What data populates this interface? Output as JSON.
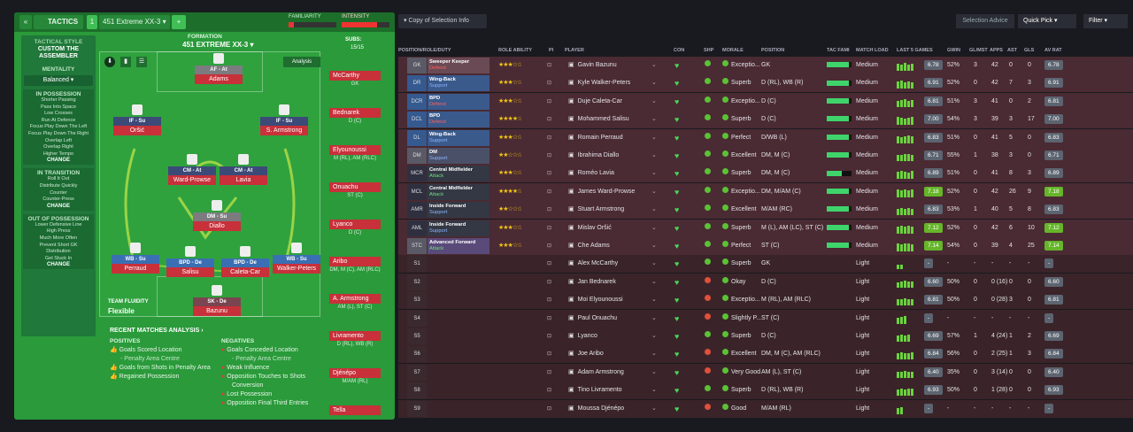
{
  "tactics": {
    "tab_label": "TACTICS",
    "slot": "1",
    "tactic_name": "451 Extreme XX-3",
    "add": "+",
    "familiarity_label": "FAMILIARITY",
    "intensity_label": "INTENSITY",
    "formation_label": "FORMATION",
    "formation_name": "451 EXTREME XX-3",
    "subs_label": "SUBS:",
    "subs_count": "15/15",
    "analysis": "Analysis",
    "style_label": "TACTICAL STYLE",
    "style_name": "CUSTOM THE ASSEMBLER",
    "mentality_label": "MENTALITY",
    "mentality": "Balanced",
    "in_possession": {
      "title": "IN POSSESSION",
      "items": [
        "Shorter Passing",
        "Pass Into Space",
        "Low Crosses",
        "Run At Defence",
        "Focus Play Down The Left",
        "Focus Play Down The Right",
        "Overlap Left",
        "Overlap Right",
        "Higher Tempo"
      ],
      "change": "CHANGE"
    },
    "in_transition": {
      "title": "IN TRANSITION",
      "items": [
        "Roll It Out",
        "Distribute Quickly",
        "Counter",
        "Counter-Press"
      ],
      "change": "CHANGE"
    },
    "out_of_possession": {
      "title": "OUT OF POSSESSION",
      "items": [
        "Lower Defensive Line",
        "High Press",
        "Much More Often",
        "Prevent Short GK",
        "Distribution",
        "Get Stuck In"
      ],
      "change": "CHANGE"
    },
    "team_fluidity_label": "TEAM FLUIDITY",
    "team_fluidity": "Flexible",
    "pitch": [
      {
        "role": "AF - At",
        "name": "Adams"
      },
      {
        "role": "IF - Su",
        "name": "Oršić"
      },
      {
        "role": "IF - Su",
        "name": "S. Armstrong"
      },
      {
        "role": "CM - At",
        "name": "Ward-Prowse"
      },
      {
        "role": "CM - At",
        "name": "Lavia"
      },
      {
        "role": "DM - Su",
        "name": "Diallo"
      },
      {
        "role": "WB - Su",
        "name": "Perraud"
      },
      {
        "role": "BPD - De",
        "name": "Salisu"
      },
      {
        "role": "BPD - De",
        "name": "Caleta-Car"
      },
      {
        "role": "WB - Su",
        "name": "Walker-Peters"
      },
      {
        "role": "SK - De",
        "name": "Bazunu"
      }
    ],
    "subs": [
      {
        "name": "McCarthy",
        "pos": "GK"
      },
      {
        "name": "Bednarek",
        "pos": "D (C)"
      },
      {
        "name": "Elyounoussi",
        "pos": "M (RL), AM (RLC)"
      },
      {
        "name": "Onuachu",
        "pos": "ST (C)"
      },
      {
        "name": "Lyanco",
        "pos": "D (C)"
      },
      {
        "name": "Aribo",
        "pos": "DM, M (C), AM (RLC)"
      },
      {
        "name": "A. Armstrong",
        "pos": "AM (L), ST (C)"
      },
      {
        "name": "Livramento",
        "pos": "D (RL), WB (R)"
      },
      {
        "name": "Djénépo",
        "pos": "M/AM (RL)"
      },
      {
        "name": "Tella",
        "pos": ""
      }
    ],
    "rmr_title": "RECENT MATCHES ANALYSIS",
    "positives_label": "POSITIVES",
    "negatives_label": "NEGATIVES",
    "positives": [
      "Goals Scored Location",
      "- Penalty Area Centre",
      "Goals from Shots in Penalty Area",
      "Regained Possession"
    ],
    "negatives": [
      "Goals Conceded Location",
      "- Penalty Area Centre",
      "Weak Influence",
      "Opposition Touches to Shots",
      "Conversion",
      "Lost Possession",
      "Opposition Final Third Entries"
    ]
  },
  "squad": {
    "copy_button": "Copy of Selection Info",
    "selection_advice": "Selection Advice",
    "quick_pick": "Quick Pick",
    "filter": "Filter",
    "headers": [
      "POSITION/ROLE/DUTY",
      "ROLE ABILITY",
      "PI",
      "PLAYER",
      "CON",
      "SHP",
      "MORALE",
      "POSITION",
      "TAC FAMI",
      "MATCH LOAD",
      "LAST 5 GAMES",
      "GWIN",
      "GL/MST",
      "APPS",
      "AST",
      "GLS",
      "AV RAT"
    ],
    "rows": [
      {
        "pos": "GK",
        "role": "Sweeper Keeper",
        "duty": "Defend",
        "stars": 3,
        "player": "Gavin Bazunu",
        "morale": "Exceptio...",
        "position": "GK",
        "fam": 0.9,
        "load": "Medium",
        "bars": [
          5,
          4,
          6,
          4,
          5
        ],
        "gwin": "52%",
        "glmst": "3",
        "apps": "42",
        "ast": "0",
        "gls": "0",
        "avrat": "6.78",
        "good": false
      },
      {
        "pos": "DR",
        "role": "Wing-Back",
        "duty": "Support",
        "stars": 3,
        "player": "Kyle Walker-Peters",
        "morale": "Superb",
        "position": "D (RL), WB (R)",
        "fam": 0.9,
        "load": "Medium",
        "bars": [
          5,
          6,
          4,
          5,
          4
        ],
        "gwin": "52%",
        "glmst": "0",
        "apps": "42",
        "ast": "7",
        "gls": "3",
        "avrat": "6.91",
        "good": false
      },
      {
        "pos": "DCR",
        "role": "BPD",
        "duty": "Defend",
        "stars": 3,
        "player": "Duje Caleta-Car",
        "morale": "Exceptio...",
        "position": "D (C)",
        "fam": 0.9,
        "load": "Medium",
        "bars": [
          4,
          5,
          6,
          4,
          5
        ],
        "gwin": "51%",
        "glmst": "3",
        "apps": "41",
        "ast": "0",
        "gls": "2",
        "avrat": "6.81",
        "good": false
      },
      {
        "pos": "DCL",
        "role": "BPD",
        "duty": "Defend",
        "stars": 4,
        "player": "Mohammed Salisu",
        "morale": "Superb",
        "position": "D (C)",
        "fam": 0.9,
        "load": "Medium",
        "bars": [
          6,
          5,
          4,
          5,
          6
        ],
        "gwin": "54%",
        "glmst": "3",
        "apps": "39",
        "ast": "3",
        "gls": "17",
        "avrat": "7.00",
        "good": false
      },
      {
        "pos": "DL",
        "role": "Wing-Back",
        "duty": "Support",
        "stars": 3,
        "player": "Romain Perraud",
        "morale": "Perfect",
        "position": "D/WB (L)",
        "fam": 0.9,
        "load": "Medium",
        "bars": [
          5,
          4,
          5,
          6,
          5
        ],
        "gwin": "51%",
        "glmst": "0",
        "apps": "41",
        "ast": "5",
        "gls": "0",
        "avrat": "6.83",
        "good": false
      },
      {
        "pos": "DM",
        "role": "DM",
        "duty": "Support",
        "stars": 2,
        "player": "Ibrahima Diallo",
        "morale": "Excellent",
        "position": "DM, M (C)",
        "fam": 0.9,
        "load": "Medium",
        "bars": [
          4,
          4,
          5,
          5,
          4
        ],
        "gwin": "55%",
        "glmst": "1",
        "apps": "38",
        "ast": "3",
        "gls": "0",
        "avrat": "6.71",
        "good": false
      },
      {
        "pos": "MCR",
        "role": "Central Midfielder",
        "duty": "Attack",
        "stars": 3,
        "player": "Roméo Lavia",
        "morale": "Superb",
        "position": "DM, M (C)",
        "fam": 0.6,
        "load": "Medium",
        "bars": [
          5,
          6,
          5,
          4,
          6
        ],
        "gwin": "51%",
        "glmst": "0",
        "apps": "41",
        "ast": "8",
        "gls": "3",
        "avrat": "6.89",
        "good": false
      },
      {
        "pos": "MCL",
        "role": "Central Midfielder",
        "duty": "Attack",
        "stars": 4,
        "player": "James Ward-Prowse",
        "morale": "Exceptio...",
        "position": "DM, M/AM (C)",
        "fam": 0.9,
        "load": "Medium",
        "bars": [
          6,
          5,
          6,
          5,
          6
        ],
        "gwin": "52%",
        "glmst": "0",
        "apps": "42",
        "ast": "26",
        "gls": "9",
        "avrat": "7.18",
        "good": true
      },
      {
        "pos": "AMR",
        "role": "Inside Forward",
        "duty": "Support",
        "stars": 2,
        "player": "Stuart Armstrong",
        "morale": "Excellent",
        "position": "M/AM (RC)",
        "fam": 0.9,
        "load": "Medium",
        "bars": [
          4,
          5,
          4,
          5,
          4
        ],
        "gwin": "53%",
        "glmst": "1",
        "apps": "40",
        "ast": "5",
        "gls": "8",
        "avrat": "6.83",
        "good": false
      },
      {
        "pos": "AML",
        "role": "Inside Forward",
        "duty": "Support",
        "stars": 3,
        "player": "Mislav Oršić",
        "morale": "Superb",
        "position": "M (L), AM (LC), ST (C)",
        "fam": 0.9,
        "load": "Medium",
        "bars": [
          5,
          6,
          5,
          6,
          5
        ],
        "gwin": "52%",
        "glmst": "0",
        "apps": "42",
        "ast": "6",
        "gls": "10",
        "avrat": "7.12",
        "good": true
      },
      {
        "pos": "STC",
        "role": "Advanced Forward",
        "duty": "Attack",
        "stars": 3,
        "player": "Che Adams",
        "morale": "Perfect",
        "position": "ST (C)",
        "fam": 0.9,
        "load": "Medium",
        "bars": [
          6,
          5,
          6,
          6,
          5
        ],
        "gwin": "54%",
        "glmst": "0",
        "apps": "39",
        "ast": "4",
        "gls": "25",
        "avrat": "7.14",
        "good": true
      },
      {
        "pos": "S1",
        "role": "",
        "duty": "",
        "stars": 0,
        "player": "Alex McCarthy",
        "morale": "Superb",
        "position": "GK",
        "fam": 0,
        "load": "Light",
        "bars": [
          2,
          2
        ],
        "gwin": "-",
        "glmst": "-",
        "apps": "-",
        "ast": "-",
        "gls": "-",
        "avrat": "-",
        "good": false
      },
      {
        "pos": "S2",
        "role": "",
        "duty": "",
        "stars": 0,
        "player": "Jan Bednarek",
        "morale": "Okay",
        "position": "D (C)",
        "fam": 0,
        "load": "Light",
        "bars": [
          3,
          4,
          5,
          4,
          4
        ],
        "gwin": "50%",
        "glmst": "0",
        "apps": "0 (16)",
        "ast": "0",
        "gls": "0",
        "avrat": "6.60",
        "good": false
      },
      {
        "pos": "S3",
        "role": "",
        "duty": "",
        "stars": 0,
        "player": "Moi Elyounoussi",
        "morale": "Exceptio...",
        "position": "M (RL), AM (RLC)",
        "fam": 0,
        "load": "Light",
        "bars": [
          4,
          4,
          5,
          4,
          4
        ],
        "gwin": "50%",
        "glmst": "0",
        "apps": "0 (28)",
        "ast": "3",
        "gls": "0",
        "avrat": "6.81",
        "good": false
      },
      {
        "pos": "S4",
        "role": "",
        "duty": "",
        "stars": 0,
        "player": "Paul Onuachu",
        "morale": "Slightly P...",
        "position": "ST (C)",
        "fam": 0,
        "load": "Light",
        "bars": [
          4,
          5,
          6
        ],
        "gwin": "-",
        "glmst": "-",
        "apps": "-",
        "ast": "-",
        "gls": "-",
        "avrat": "-",
        "good": false
      },
      {
        "pos": "S5",
        "role": "",
        "duty": "",
        "stars": 0,
        "player": "Lyanco",
        "morale": "Superb",
        "position": "D (C)",
        "fam": 0,
        "load": "Light",
        "bars": [
          4,
          5,
          4,
          5
        ],
        "gwin": "57%",
        "glmst": "1",
        "apps": "4 (24)",
        "ast": "1",
        "gls": "2",
        "avrat": "6.69",
        "good": false
      },
      {
        "pos": "S6",
        "role": "",
        "duty": "",
        "stars": 0,
        "player": "Joe Aribo",
        "morale": "Excellent",
        "position": "DM, M (C), AM (RLC)",
        "fam": 0,
        "load": "Light",
        "bars": [
          4,
          5,
          4,
          4,
          5
        ],
        "gwin": "56%",
        "glmst": "0",
        "apps": "2 (25)",
        "ast": "1",
        "gls": "3",
        "avrat": "6.84",
        "good": false
      },
      {
        "pos": "S7",
        "role": "",
        "duty": "",
        "stars": 0,
        "player": "Adam Armstrong",
        "morale": "Very Good",
        "position": "AM (L), ST (C)",
        "fam": 0,
        "load": "Light",
        "bars": [
          4,
          4,
          5,
          4,
          4
        ],
        "gwin": "35%",
        "glmst": "0",
        "apps": "3 (14)",
        "ast": "0",
        "gls": "0",
        "avrat": "6.40",
        "good": false
      },
      {
        "pos": "S8",
        "role": "",
        "duty": "",
        "stars": 0,
        "player": "Tino Livramento",
        "morale": "Superb",
        "position": "D (RL), WB (R)",
        "fam": 0,
        "load": "Light",
        "bars": [
          4,
          5,
          4,
          5,
          5
        ],
        "gwin": "50%",
        "glmst": "0",
        "apps": "1 (28)",
        "ast": "0",
        "gls": "0",
        "avrat": "6.93",
        "good": false
      },
      {
        "pos": "S9",
        "role": "",
        "duty": "",
        "stars": 0,
        "player": "Moussa Djénépo",
        "morale": "Good",
        "position": "M/AM (RL)",
        "fam": 0,
        "load": "Light",
        "bars": [
          4,
          5
        ],
        "gwin": "-",
        "glmst": "-",
        "apps": "-",
        "ast": "-",
        "gls": "-",
        "avrat": "-",
        "good": false
      }
    ]
  }
}
